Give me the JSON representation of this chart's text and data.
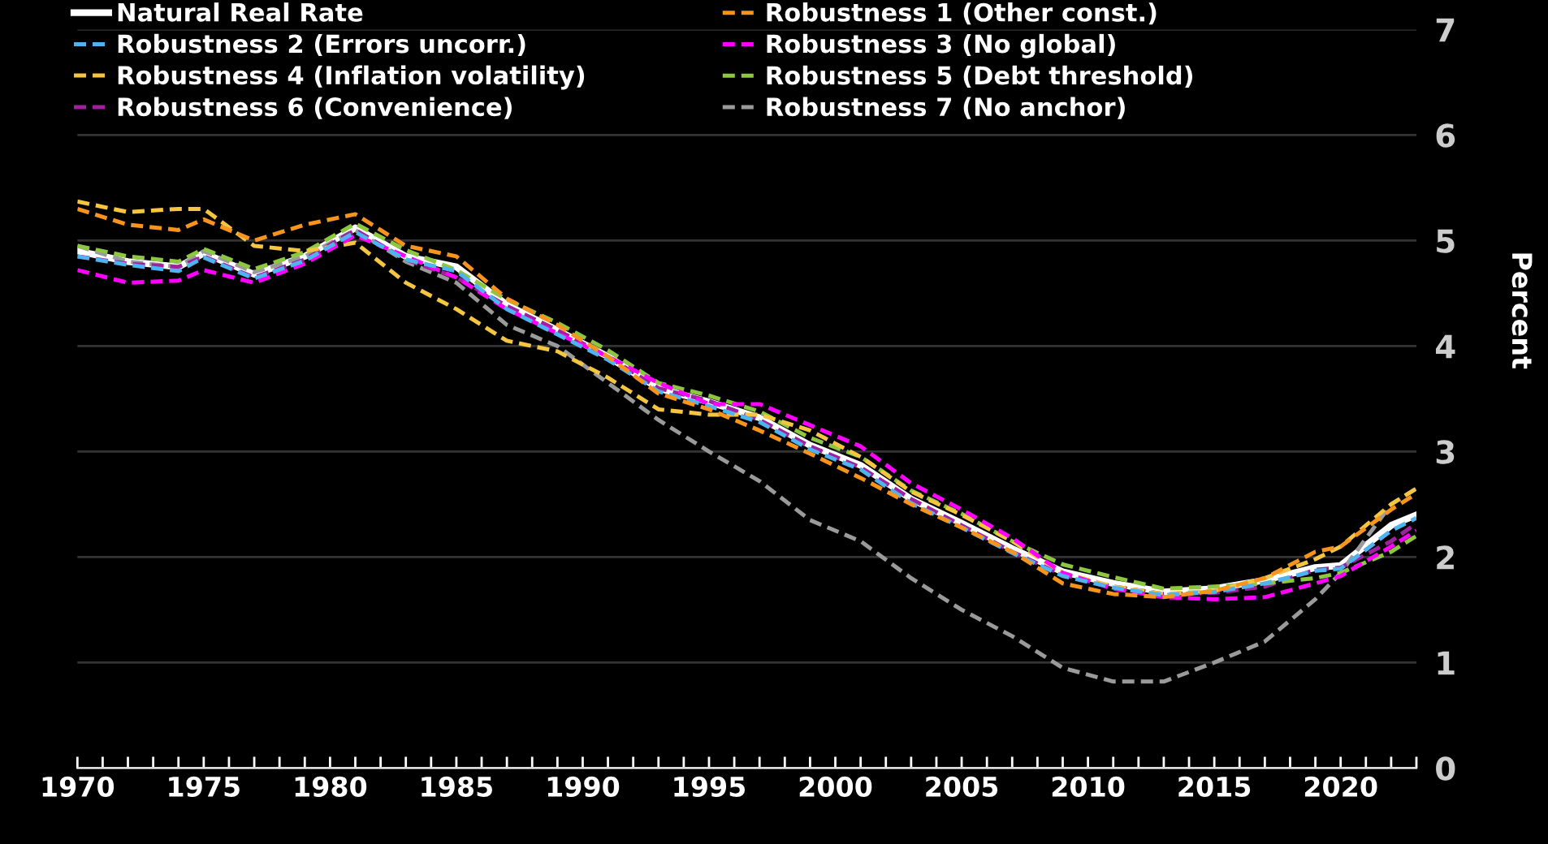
{
  "chart_data": {
    "type": "line",
    "ylabel": "Percent",
    "x": [
      1970,
      1972,
      1974,
      1975,
      1977,
      1979,
      1981,
      1983,
      1985,
      1987,
      1989,
      1991,
      1993,
      1995,
      1997,
      1999,
      2001,
      2003,
      2005,
      2007,
      2009,
      2011,
      2013,
      2015,
      2017,
      2019,
      2020,
      2022,
      2023
    ],
    "series": [
      {
        "name": "Natural Real Rate",
        "color": "#ffffff",
        "line_style": "solid",
        "values": [
          4.9,
          4.8,
          4.75,
          4.88,
          4.68,
          4.85,
          5.12,
          4.85,
          4.75,
          4.39,
          4.15,
          3.9,
          3.6,
          3.47,
          3.32,
          3.06,
          2.87,
          2.55,
          2.32,
          2.08,
          1.86,
          1.75,
          1.67,
          1.7,
          1.78,
          1.9,
          1.92,
          2.3,
          2.4
        ]
      },
      {
        "name": "Robustness 1 (Other const.)",
        "color": "#f7941d",
        "line_style": "dashed",
        "values": [
          5.3,
          5.15,
          5.1,
          5.2,
          5.0,
          5.15,
          5.25,
          4.95,
          4.85,
          4.45,
          4.2,
          3.9,
          3.55,
          3.4,
          3.2,
          2.98,
          2.75,
          2.5,
          2.28,
          2.05,
          1.75,
          1.65,
          1.62,
          1.68,
          1.8,
          2.05,
          2.1,
          2.45,
          2.6
        ]
      },
      {
        "name": "Robustness 2 (Errors uncorr.)",
        "color": "#4fb3f0",
        "line_style": "dashed",
        "values": [
          4.85,
          4.77,
          4.71,
          4.84,
          4.64,
          4.81,
          5.08,
          4.82,
          4.71,
          4.35,
          4.11,
          3.87,
          3.57,
          3.43,
          3.28,
          3.02,
          2.83,
          2.51,
          2.28,
          2.04,
          1.82,
          1.71,
          1.64,
          1.67,
          1.75,
          1.87,
          1.89,
          2.25,
          2.37
        ]
      },
      {
        "name": "Robustness 3 (No global)",
        "color": "#ff00ff",
        "line_style": "dashed",
        "values": [
          4.72,
          4.6,
          4.62,
          4.72,
          4.6,
          4.78,
          5.05,
          4.85,
          4.65,
          4.35,
          4.12,
          3.9,
          3.65,
          3.45,
          3.45,
          3.25,
          3.05,
          2.7,
          2.45,
          2.18,
          1.85,
          1.7,
          1.62,
          1.6,
          1.62,
          1.75,
          1.82,
          2.1,
          2.25
        ]
      },
      {
        "name": "Robustness 4 (Inflation volatility)",
        "color": "#f5c542",
        "line_style": "dashed",
        "values": [
          5.37,
          5.27,
          5.3,
          5.3,
          4.95,
          4.9,
          4.98,
          4.6,
          4.35,
          4.05,
          3.95,
          3.7,
          3.4,
          3.35,
          3.35,
          3.2,
          2.95,
          2.62,
          2.4,
          2.15,
          1.85,
          1.72,
          1.65,
          1.68,
          1.8,
          1.98,
          2.1,
          2.5,
          2.65
        ]
      },
      {
        "name": "Robustness 5 (Debt threshold)",
        "color": "#8dc63f",
        "line_style": "dashed",
        "values": [
          4.95,
          4.85,
          4.8,
          4.92,
          4.73,
          4.89,
          5.16,
          4.91,
          4.72,
          4.44,
          4.22,
          3.96,
          3.65,
          3.53,
          3.38,
          3.13,
          2.95,
          2.63,
          2.41,
          2.15,
          1.93,
          1.81,
          1.7,
          1.72,
          1.75,
          1.8,
          1.85,
          2.05,
          2.2
        ]
      },
      {
        "name": "Robustness 6 (Convenience)",
        "color": "#a020a0",
        "line_style": "dashed",
        "values": [
          4.85,
          4.78,
          4.75,
          4.85,
          4.65,
          4.82,
          5.1,
          4.82,
          4.65,
          4.38,
          4.15,
          3.9,
          3.6,
          3.48,
          3.3,
          3.05,
          2.85,
          2.55,
          2.3,
          2.05,
          1.83,
          1.72,
          1.65,
          1.66,
          1.72,
          1.88,
          1.9,
          2.15,
          2.32
        ]
      },
      {
        "name": "Robustness 7 (No anchor)",
        "color": "#9a9a9a",
        "line_style": "dashed",
        "values": [
          4.95,
          4.8,
          4.75,
          4.9,
          4.7,
          4.85,
          5.1,
          4.8,
          4.6,
          4.2,
          4.0,
          3.65,
          3.3,
          3.0,
          2.72,
          2.35,
          2.15,
          1.8,
          1.5,
          1.25,
          0.95,
          0.82,
          0.82,
          1.0,
          1.2,
          1.6,
          1.85,
          2.5,
          2.65
        ]
      }
    ],
    "xlim": [
      1970,
      2023
    ],
    "xticks": [
      1970,
      {
        "value": 1971,
        "label": null
      },
      {
        "value": 1972,
        "label": null
      },
      {
        "value": 1973,
        "label": null
      },
      {
        "value": 1974,
        "label": null
      },
      1975,
      {
        "value": 1976,
        "label": null
      },
      {
        "value": 1977,
        "label": null
      },
      {
        "value": 1978,
        "label": null
      },
      {
        "value": 1979,
        "label": null
      },
      1980,
      {
        "value": 1981,
        "label": null
      },
      {
        "value": 1982,
        "label": null
      },
      {
        "value": 1983,
        "label": null
      },
      {
        "value": 1984,
        "label": null
      },
      1985,
      {
        "value": 1986,
        "label": null
      },
      {
        "value": 1987,
        "label": null
      },
      {
        "value": 1988,
        "label": null
      },
      {
        "value": 1989,
        "label": null
      },
      1990,
      {
        "value": 1991,
        "label": null
      },
      {
        "value": 1992,
        "label": null
      },
      {
        "value": 1993,
        "label": null
      },
      {
        "value": 1994,
        "label": null
      },
      1995,
      {
        "value": 1996,
        "label": null
      },
      {
        "value": 1997,
        "label": null
      },
      {
        "value": 1998,
        "label": null
      },
      {
        "value": 1999,
        "label": null
      },
      2000,
      {
        "value": 2001,
        "label": null
      },
      {
        "value": 2002,
        "label": null
      },
      {
        "value": 2003,
        "label": null
      },
      {
        "value": 2004,
        "label": null
      },
      2005,
      {
        "value": 2006,
        "label": null
      },
      {
        "value": 2007,
        "label": null
      },
      {
        "value": 2008,
        "label": null
      },
      {
        "value": 2009,
        "label": null
      },
      2010,
      {
        "value": 2011,
        "label": null
      },
      {
        "value": 2012,
        "label": null
      },
      {
        "value": 2013,
        "label": null
      },
      {
        "value": 2014,
        "label": null
      },
      2015,
      {
        "value": 2016,
        "label": null
      },
      {
        "value": 2017,
        "label": null
      },
      {
        "value": 2018,
        "label": null
      },
      {
        "value": 2019,
        "label": null
      },
      2020,
      {
        "value": 2021,
        "label": null
      },
      {
        "value": 2022,
        "label": null
      },
      {
        "value": 2023,
        "label": null
      }
    ],
    "ylim": [
      0,
      7
    ],
    "yticks": [
      0,
      1,
      2,
      3,
      4,
      5,
      6,
      7
    ],
    "grid": "y",
    "legend": "top left",
    "marker": "none"
  }
}
